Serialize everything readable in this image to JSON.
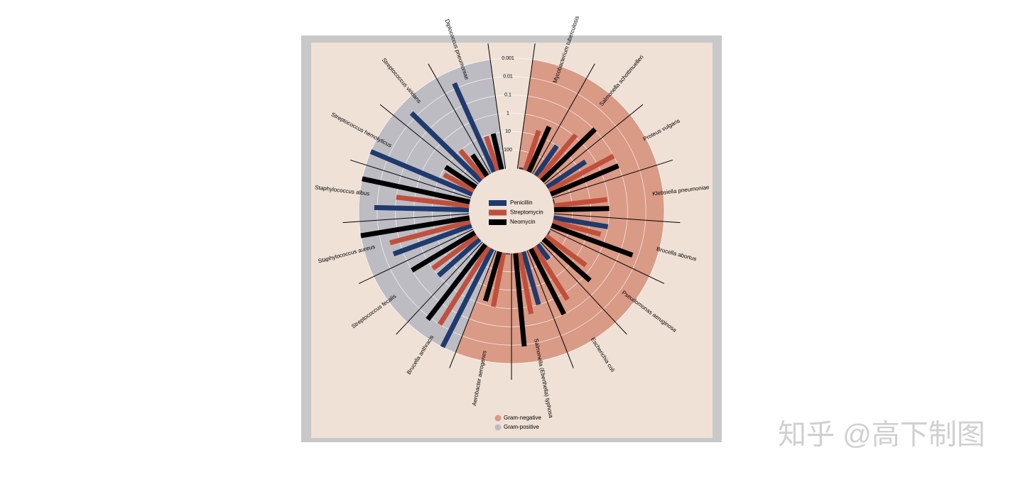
{
  "chart_data": {
    "type": "radial-bar",
    "categories": [
      "Mycobacterium tuberculosis",
      "Salmonella schottmuelleri",
      "Proteus vulgaris",
      "Klebsiella pneumoniae",
      "Brucella abortus",
      "Pseudomonas aeruginosa",
      "Escherichia coli",
      "Salmonella (Eberthella) typhosa",
      "Aerobacter aerogenes",
      "Brucella anthracis",
      "Streptococcus fecalis",
      "Staphylococcus aureus",
      "Staphylococcus albus",
      "Streptococcus hemolyticus",
      "Streptococcus viridans",
      "Diplococcus pneumoniae"
    ],
    "category_group": [
      "Gram-negative",
      "Gram-negative",
      "Gram-negative",
      "Gram-negative",
      "Gram-negative",
      "Gram-negative",
      "Gram-negative",
      "Gram-negative",
      "Gram-negative",
      "Gram-positive",
      "Gram-positive",
      "Gram-positive",
      "Gram-positive",
      "Gram-positive",
      "Gram-positive",
      "Gram-positive"
    ],
    "groups": [
      {
        "name": "Gram-negative",
        "color": "#d99a86"
      },
      {
        "name": "Gram-positive",
        "color": "#bdbcc3"
      }
    ],
    "series": [
      {
        "name": "Penicillin",
        "color": "#1f3a6d",
        "values": [
          800,
          10,
          3,
          850,
          1,
          850,
          100,
          1,
          870,
          0.001,
          1,
          0.03,
          0.007,
          0.001,
          0.005,
          0.005
        ]
      },
      {
        "name": "Streptomycin",
        "color": "#c0503b",
        "values": [
          5,
          0.8,
          0.1,
          1.2,
          2,
          2,
          0.4,
          0.4,
          1,
          0.01,
          1,
          0.03,
          0.1,
          14,
          10,
          11
        ]
      },
      {
        "name": "Neomycin",
        "color": "#000000",
        "values": [
          2,
          0.09,
          0.1,
          1,
          0.02,
          0.4,
          0.1,
          0.008,
          1.6,
          0.007,
          0.1,
          0.001,
          0.001,
          10,
          40,
          10
        ]
      }
    ],
    "scale": "log",
    "ylim": [
      1000,
      0.001
    ],
    "yticks": [
      0.001,
      0.01,
      0.1,
      1,
      10,
      100
    ],
    "watermark": "知乎 @高下制图"
  }
}
